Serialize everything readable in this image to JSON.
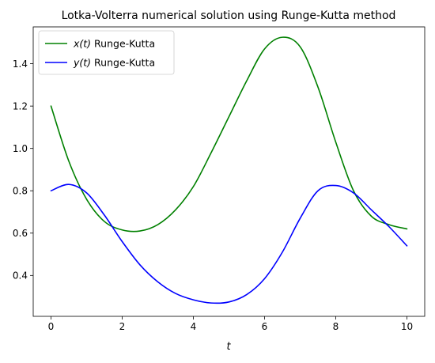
{
  "chart_data": {
    "type": "line",
    "title": "Lotka-Volterra numerical solution using Runge-Kutta method",
    "xlabel": "t",
    "ylabel": "",
    "xlim": [
      -0.5,
      10.5
    ],
    "ylim": [
      0.207,
      1.574
    ],
    "xticks": [
      0,
      2,
      4,
      6,
      8,
      10
    ],
    "yticks": [
      0.4,
      0.6,
      0.8,
      1.0,
      1.2,
      1.4
    ],
    "xtick_labels": [
      "0",
      "2",
      "4",
      "6",
      "8",
      "10"
    ],
    "ytick_labels": [
      "0.4",
      "0.6",
      "0.8",
      "1.0",
      "1.2",
      "1.4"
    ],
    "grid": false,
    "legend_position": "top-left",
    "x": [
      0,
      0.5,
      1,
      1.5,
      2,
      2.5,
      3,
      3.5,
      4,
      4.5,
      5,
      5.5,
      6,
      6.5,
      7,
      7.5,
      8,
      8.5,
      9,
      9.5,
      10
    ],
    "series": [
      {
        "name": "x(t) Runge-Kutta",
        "label_var": "x(t)",
        "label_suffix": " Runge-Kutta",
        "color": "#008000",
        "values": [
          1.2,
          0.94,
          0.76,
          0.655,
          0.615,
          0.61,
          0.64,
          0.71,
          0.82,
          0.98,
          1.15,
          1.32,
          1.47,
          1.525,
          1.48,
          1.29,
          1.03,
          0.8,
          0.68,
          0.64,
          0.62
        ]
      },
      {
        "name": "y(t) Runge-Kutta",
        "label_var": "y(t)",
        "label_suffix": " Runge-Kutta",
        "color": "#0000ff",
        "values": [
          0.8,
          0.83,
          0.79,
          0.685,
          0.56,
          0.45,
          0.37,
          0.315,
          0.285,
          0.27,
          0.275,
          0.31,
          0.385,
          0.51,
          0.67,
          0.8,
          0.825,
          0.79,
          0.71,
          0.63,
          0.54
        ]
      }
    ]
  }
}
